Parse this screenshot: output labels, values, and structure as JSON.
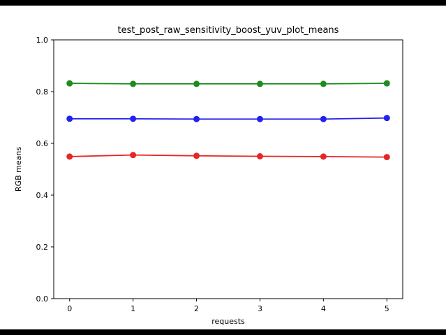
{
  "chart_data": {
    "type": "line",
    "title": "test_post_raw_sensitivity_boost_yuv_plot_means",
    "xlabel": "requests",
    "ylabel": "RGB means",
    "x": [
      0,
      1,
      2,
      3,
      4,
      5
    ],
    "xlim": [
      -0.25,
      5.25
    ],
    "ylim": [
      0.0,
      1.0
    ],
    "xticks": [
      0,
      1,
      2,
      3,
      4,
      5
    ],
    "yticks": [
      0.0,
      0.2,
      0.4,
      0.6,
      0.8,
      1.0
    ],
    "grid": false,
    "legend": "none",
    "series": [
      {
        "name": "green-channel-mean",
        "color": "#1e8c1e",
        "values": [
          0.832,
          0.83,
          0.83,
          0.83,
          0.83,
          0.832
        ]
      },
      {
        "name": "blue-channel-mean",
        "color": "#2222ee",
        "values": [
          0.695,
          0.695,
          0.694,
          0.694,
          0.694,
          0.698
        ]
      },
      {
        "name": "red-channel-mean",
        "color": "#e62626",
        "values": [
          0.549,
          0.555,
          0.552,
          0.55,
          0.549,
          0.547
        ]
      }
    ]
  },
  "frame": {
    "background_color": "#ffffff",
    "letterbox_color": "#000000"
  }
}
